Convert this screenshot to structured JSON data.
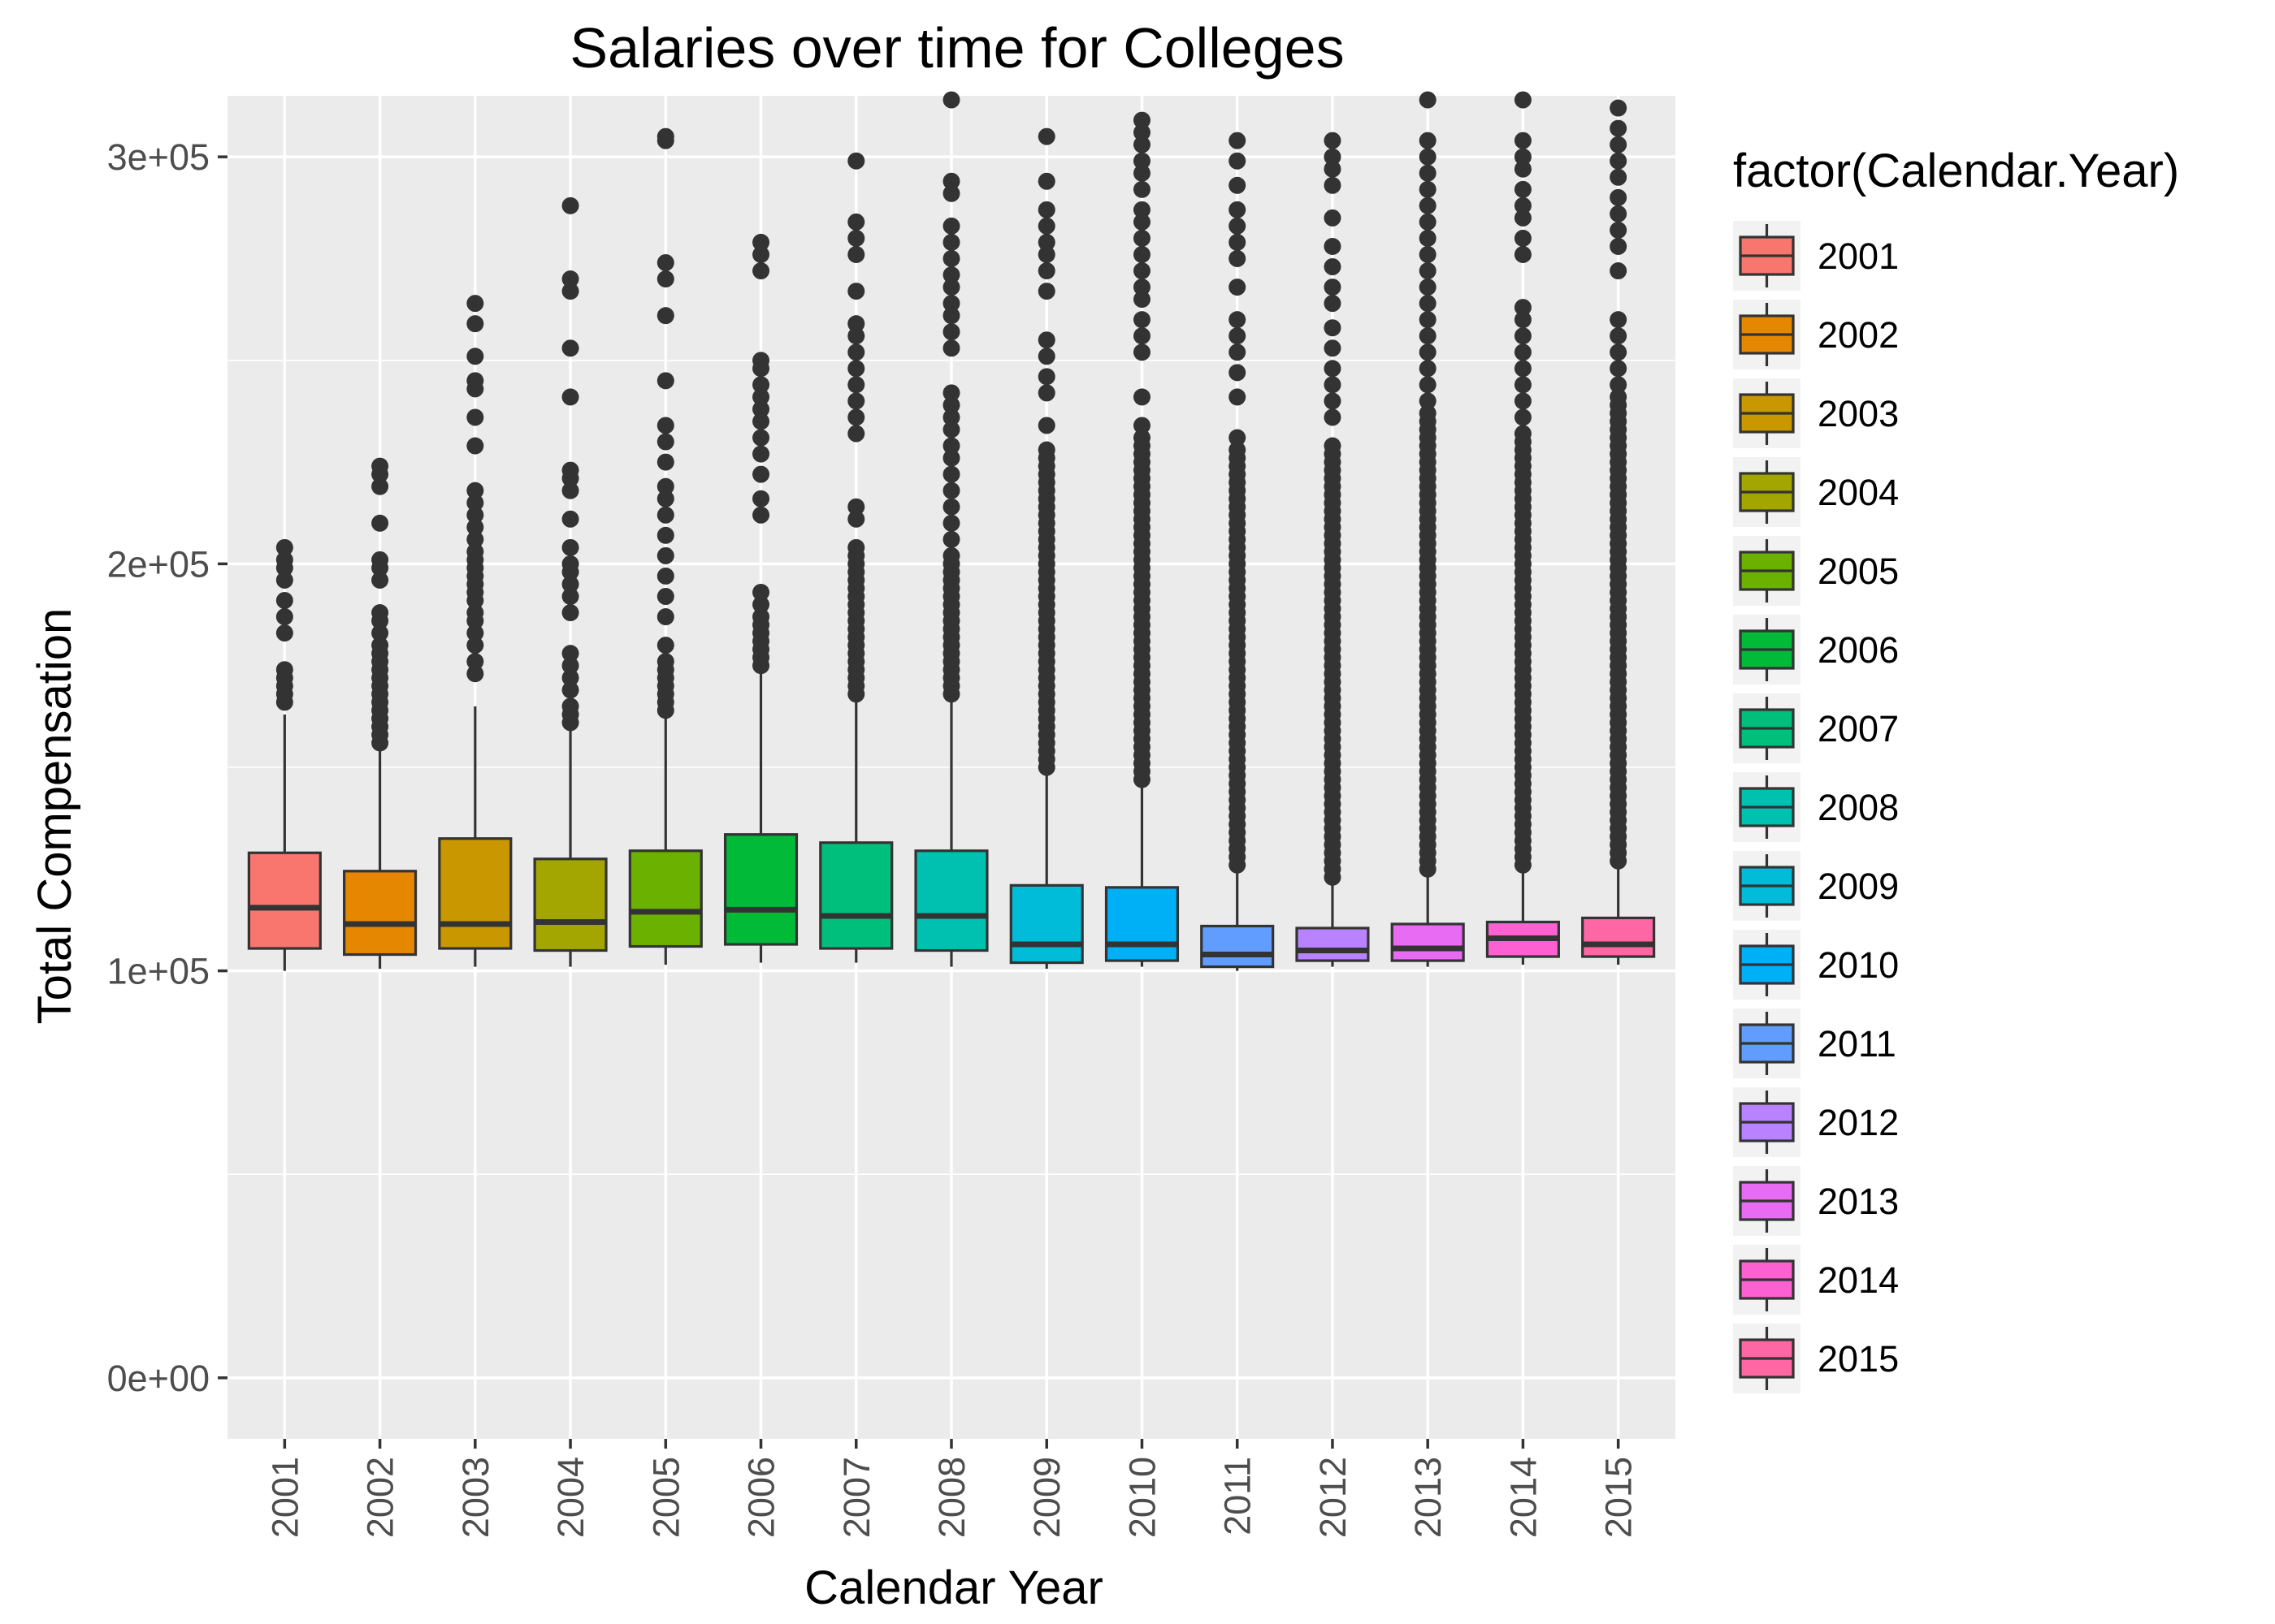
{
  "chart_data": {
    "type": "box",
    "title": "Salaries over time for Colleges",
    "xlabel": "Calendar Year",
    "ylabel": "Total Compensation",
    "ylim": [
      -15000,
      315000
    ],
    "yticks": [
      0,
      100000,
      200000,
      300000
    ],
    "ytick_labels": [
      "0e+00",
      "1e+05",
      "2e+05",
      "3e+05"
    ],
    "grid": true,
    "legend": {
      "title": "factor(Calendar.Year)",
      "position": "right"
    },
    "categories": [
      "2001",
      "2002",
      "2003",
      "2004",
      "2005",
      "2006",
      "2007",
      "2008",
      "2009",
      "2010",
      "2011",
      "2012",
      "2013",
      "2014",
      "2015"
    ],
    "colors": [
      "#F8766D",
      "#E58700",
      "#C99800",
      "#A3A500",
      "#6BB100",
      "#00BA38",
      "#00BF7D",
      "#00C0AF",
      "#00BCD8",
      "#00B0F6",
      "#619CFF",
      "#B983FF",
      "#E76BF3",
      "#FD61D1",
      "#FF67A4"
    ],
    "boxes": [
      {
        "category": "2001",
        "lower": 100000,
        "q1": 105500,
        "median": 115500,
        "q3": 129000,
        "upper": 163000,
        "outliers": [
          166000,
          168000,
          170000,
          172000,
          174000,
          183000,
          187000,
          191000,
          196000,
          199000,
          201000,
          204000
        ]
      },
      {
        "category": "2002",
        "lower": 100500,
        "q1": 104000,
        "median": 111500,
        "q3": 124500,
        "upper": 154500,
        "outliers": [
          156000,
          158000,
          160000,
          162000,
          164000,
          166000,
          168000,
          170000,
          172000,
          174000,
          176000,
          178000,
          180000,
          183000,
          186000,
          188000,
          196000,
          199000,
          201000,
          210000,
          219000,
          222000,
          224000
        ]
      },
      {
        "category": "2003",
        "lower": 101000,
        "q1": 105500,
        "median": 111500,
        "q3": 132500,
        "upper": 165000,
        "outliers": [
          173000,
          176000,
          180000,
          183000,
          186000,
          188000,
          191000,
          193000,
          195000,
          197000,
          199000,
          201000,
          203000,
          206000,
          209000,
          212000,
          215000,
          218000,
          229000,
          236000,
          243000,
          245000,
          251000,
          259000,
          264000
        ]
      },
      {
        "category": "2004",
        "lower": 101000,
        "q1": 105000,
        "median": 112000,
        "q3": 127500,
        "upper": 159000,
        "outliers": [
          161000,
          163000,
          165000,
          169000,
          172000,
          175000,
          178000,
          188000,
          192000,
          195000,
          198000,
          200000,
          204000,
          211000,
          218000,
          221000,
          223000,
          241000,
          253000,
          267000,
          270000,
          288000
        ]
      },
      {
        "category": "2005",
        "lower": 101500,
        "q1": 106000,
        "median": 114500,
        "q3": 129500,
        "upper": 162500,
        "outliers": [
          164000,
          166000,
          168000,
          170000,
          172000,
          174000,
          176000,
          180000,
          187000,
          192000,
          197000,
          202000,
          207000,
          212000,
          216000,
          219000,
          225000,
          230000,
          234000,
          245000,
          261000,
          270000,
          274000,
          304000,
          305000
        ]
      },
      {
        "category": "2006",
        "lower": 102000,
        "q1": 106500,
        "median": 115000,
        "q3": 133500,
        "upper": 173500,
        "outliers": [
          175000,
          177000,
          179000,
          181000,
          183000,
          185000,
          187000,
          190000,
          193000,
          212000,
          216000,
          222000,
          227000,
          231000,
          235000,
          238000,
          241000,
          244000,
          248000,
          250000,
          272000,
          276000,
          279000
        ]
      },
      {
        "category": "2007",
        "lower": 102000,
        "q1": 105500,
        "median": 113500,
        "q3": 131500,
        "upper": 166500,
        "outliers": [
          168000,
          170000,
          172000,
          174000,
          176000,
          178000,
          180000,
          182000,
          184000,
          186000,
          188000,
          190000,
          192000,
          194000,
          196000,
          198000,
          200000,
          202000,
          204000,
          211000,
          214000,
          232000,
          236000,
          240000,
          244000,
          248000,
          252000,
          256000,
          259000,
          267000,
          276000,
          280000,
          284000,
          299000
        ]
      },
      {
        "category": "2008",
        "lower": 101000,
        "q1": 105000,
        "median": 113500,
        "q3": 129500,
        "upper": 166500,
        "outliers": [
          168000,
          170000,
          172000,
          174000,
          176000,
          178000,
          180000,
          182000,
          184000,
          186000,
          188000,
          190000,
          192000,
          194000,
          196000,
          198000,
          200000,
          202000,
          206000,
          210000,
          214000,
          218000,
          222000,
          226000,
          229000,
          233000,
          236000,
          239000,
          242000,
          253000,
          257000,
          261000,
          264000,
          268000,
          271000,
          275000,
          279000,
          283000,
          291000,
          294000,
          314000
        ]
      },
      {
        "category": "2009",
        "lower": 100500,
        "q1": 102000,
        "median": 106500,
        "q3": 121000,
        "upper": 148000,
        "outliers": [
          150000,
          152000,
          154000,
          156000,
          158000,
          160000,
          162000,
          164000,
          166000,
          168000,
          170000,
          172000,
          174000,
          176000,
          178000,
          180000,
          182000,
          184000,
          186000,
          188000,
          190000,
          192000,
          194000,
          196000,
          198000,
          200000,
          202000,
          204000,
          206000,
          208000,
          210000,
          212000,
          214000,
          216000,
          218000,
          220000,
          222000,
          224000,
          226000,
          228000,
          234000,
          242000,
          246000,
          251000,
          255000,
          267000,
          272000,
          276000,
          279000,
          283000,
          287000,
          294000,
          305000
        ]
      },
      {
        "category": "2010",
        "lower": 101000,
        "q1": 102500,
        "median": 106500,
        "q3": 120500,
        "upper": 145500,
        "outliers": [
          147000,
          149000,
          151000,
          153000,
          155000,
          157000,
          159000,
          161000,
          163000,
          165000,
          167000,
          169000,
          171000,
          173000,
          175000,
          177000,
          179000,
          181000,
          183000,
          185000,
          187000,
          189000,
          191000,
          193000,
          195000,
          197000,
          199000,
          201000,
          203000,
          205000,
          207000,
          209000,
          211000,
          213000,
          215000,
          217000,
          219000,
          221000,
          223000,
          225000,
          227000,
          229000,
          231000,
          234000,
          241000,
          252000,
          256000,
          260000,
          265000,
          268000,
          272000,
          276000,
          280000,
          284000,
          287000,
          292000,
          296000,
          299000,
          303000,
          306000,
          309000
        ]
      },
      {
        "category": "2011",
        "lower": 100000,
        "q1": 101000,
        "median": 104000,
        "q3": 111000,
        "upper": 124000,
        "outliers": [
          126000,
          128000,
          130000,
          132000,
          134000,
          136000,
          138000,
          140000,
          142000,
          144000,
          146000,
          148000,
          150000,
          152000,
          154000,
          156000,
          158000,
          160000,
          162000,
          164000,
          166000,
          168000,
          170000,
          172000,
          174000,
          176000,
          178000,
          180000,
          182000,
          184000,
          186000,
          188000,
          190000,
          192000,
          194000,
          196000,
          198000,
          200000,
          202000,
          204000,
          206000,
          208000,
          210000,
          212000,
          214000,
          216000,
          218000,
          220000,
          222000,
          224000,
          226000,
          228000,
          231000,
          241000,
          247000,
          252000,
          256000,
          260000,
          268000,
          275000,
          279000,
          283000,
          287000,
          293000,
          299000,
          304000
        ]
      },
      {
        "category": "2012",
        "lower": 101000,
        "q1": 102500,
        "median": 105000,
        "q3": 110500,
        "upper": 121000,
        "outliers": [
          123000,
          125000,
          127000,
          129000,
          131000,
          133000,
          135000,
          137000,
          139000,
          141000,
          143000,
          145000,
          147000,
          149000,
          151000,
          153000,
          155000,
          157000,
          159000,
          161000,
          163000,
          165000,
          167000,
          169000,
          171000,
          173000,
          175000,
          177000,
          179000,
          181000,
          183000,
          185000,
          187000,
          189000,
          191000,
          193000,
          195000,
          197000,
          199000,
          201000,
          203000,
          205000,
          207000,
          209000,
          211000,
          213000,
          215000,
          217000,
          219000,
          221000,
          223000,
          225000,
          227000,
          229000,
          236000,
          240000,
          244000,
          248000,
          253000,
          258000,
          264000,
          268000,
          273000,
          278000,
          285000,
          293000,
          297000,
          300000,
          304000
        ]
      },
      {
        "category": "2013",
        "lower": 101000,
        "q1": 102500,
        "median": 105500,
        "q3": 111500,
        "upper": 123000,
        "outliers": [
          125000,
          127000,
          129000,
          131000,
          133000,
          135000,
          137000,
          139000,
          141000,
          143000,
          145000,
          147000,
          149000,
          151000,
          153000,
          155000,
          157000,
          159000,
          161000,
          163000,
          165000,
          167000,
          169000,
          171000,
          173000,
          175000,
          177000,
          179000,
          181000,
          183000,
          185000,
          187000,
          189000,
          191000,
          193000,
          195000,
          197000,
          199000,
          201000,
          203000,
          205000,
          207000,
          209000,
          211000,
          213000,
          215000,
          217000,
          219000,
          221000,
          223000,
          225000,
          227000,
          229000,
          231000,
          233000,
          235000,
          237000,
          240000,
          244000,
          248000,
          252000,
          256000,
          260000,
          264000,
          268000,
          272000,
          276000,
          280000,
          284000,
          288000,
          292000,
          296000,
          300000,
          304000,
          314000
        ]
      },
      {
        "category": "2014",
        "lower": 101500,
        "q1": 103500,
        "median": 108000,
        "q3": 112000,
        "upper": 124500,
        "outliers": [
          126000,
          128000,
          130000,
          132000,
          134000,
          136000,
          138000,
          140000,
          142000,
          144000,
          146000,
          148000,
          150000,
          152000,
          154000,
          156000,
          158000,
          160000,
          162000,
          164000,
          166000,
          168000,
          170000,
          172000,
          174000,
          176000,
          178000,
          180000,
          182000,
          184000,
          186000,
          188000,
          190000,
          192000,
          194000,
          196000,
          198000,
          200000,
          202000,
          204000,
          206000,
          208000,
          210000,
          212000,
          214000,
          216000,
          218000,
          220000,
          222000,
          224000,
          226000,
          228000,
          230000,
          232000,
          236000,
          240000,
          244000,
          248000,
          252000,
          256000,
          260000,
          263000,
          276000,
          280000,
          285000,
          288000,
          292000,
          297000,
          300000,
          304000,
          314000
        ]
      },
      {
        "category": "2015",
        "lower": 101500,
        "q1": 103500,
        "median": 106500,
        "q3": 113000,
        "upper": 125000,
        "outliers": [
          127000,
          129000,
          131000,
          133000,
          135000,
          137000,
          139000,
          141000,
          143000,
          145000,
          147000,
          149000,
          151000,
          153000,
          155000,
          157000,
          159000,
          161000,
          163000,
          165000,
          167000,
          169000,
          171000,
          173000,
          175000,
          177000,
          179000,
          181000,
          183000,
          185000,
          187000,
          189000,
          191000,
          193000,
          195000,
          197000,
          199000,
          201000,
          203000,
          205000,
          207000,
          209000,
          211000,
          213000,
          215000,
          217000,
          219000,
          221000,
          223000,
          225000,
          227000,
          229000,
          231000,
          233000,
          235000,
          237000,
          239000,
          241000,
          244000,
          248000,
          252000,
          256000,
          260000,
          272000,
          278000,
          282000,
          286000,
          290000,
          295000,
          299000,
          303000,
          307000,
          312000
        ]
      }
    ]
  }
}
